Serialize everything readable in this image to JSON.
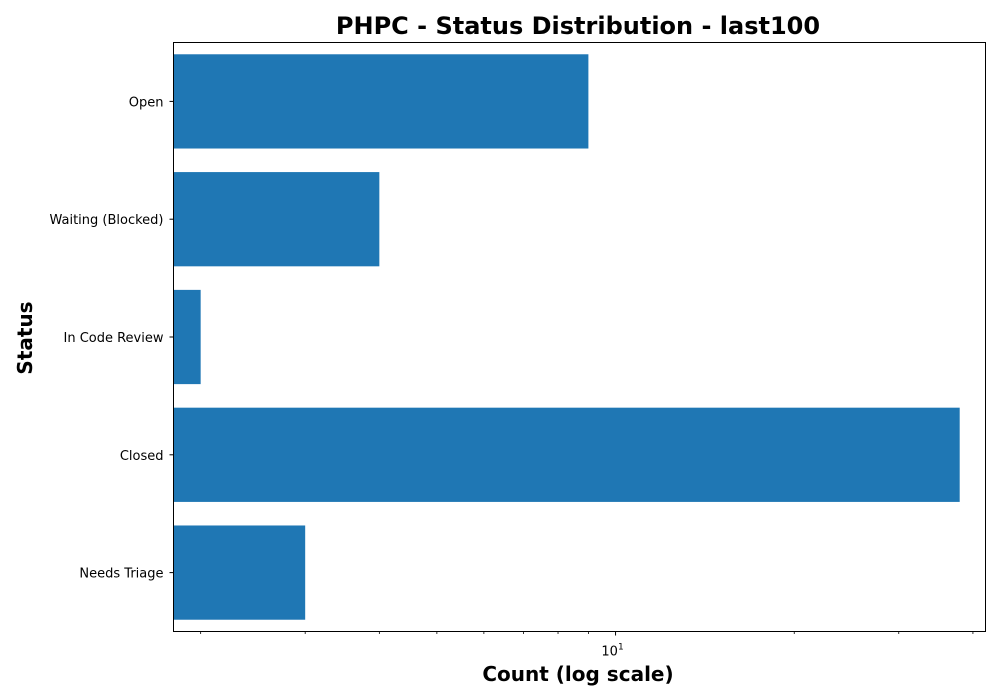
{
  "chart_data": {
    "type": "bar",
    "orientation": "horizontal",
    "title": "PHPC - Status Distribution - last100",
    "xlabel": "Count (log scale)",
    "ylabel": "Status",
    "x_scale": "log",
    "xlim": [
      1.8,
      42
    ],
    "x_major_ticks": [
      {
        "value": 10,
        "base": "10",
        "exponent": "1"
      }
    ],
    "x_minor_ticks": [
      2,
      3,
      4,
      5,
      6,
      7,
      8,
      9,
      20,
      30,
      40
    ],
    "categories": [
      "Open",
      "Waiting (Blocked)",
      "In Code Review",
      "Closed",
      "Needs Triage"
    ],
    "values": [
      9,
      4,
      2,
      38,
      3
    ],
    "bar_color": "#1f77b4",
    "grid": false,
    "legend": "none"
  }
}
